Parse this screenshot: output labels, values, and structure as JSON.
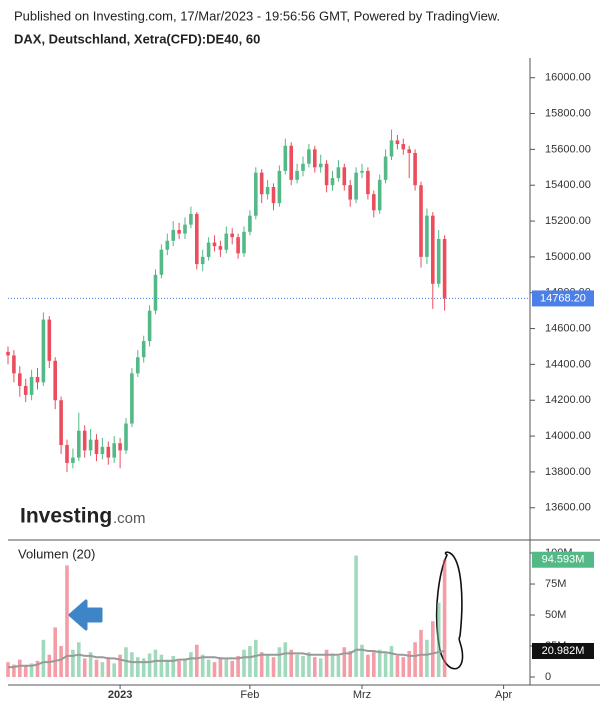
{
  "header": {
    "published": "Published on Investing.com, 17/Mar/2023 - 19:56:56 GMT, Powered by TradingView.",
    "instrument": "DAX, Deutschland, Xetra(CFD):DE40, 60"
  },
  "logo": {
    "brand": "Investing",
    "suffix": ".com"
  },
  "chart_data": {
    "type": "candlestick",
    "categories": [
      null,
      null,
      null,
      null,
      null,
      null,
      null,
      null,
      null,
      null,
      null,
      null,
      null,
      null,
      null,
      null,
      null,
      null,
      null,
      "2023",
      null,
      null,
      null,
      null,
      null,
      null,
      null,
      null,
      null,
      null,
      null,
      null,
      null,
      null,
      null,
      null,
      null,
      null,
      null,
      null,
      null,
      "Feb",
      null,
      null,
      null,
      null,
      null,
      null,
      null,
      null,
      null,
      null,
      null,
      null,
      null,
      null,
      null,
      null,
      null,
      null,
      "Mrz",
      null,
      null,
      null,
      null,
      null,
      null,
      null,
      null,
      null,
      null,
      null,
      null,
      null,
      null,
      null,
      null,
      null,
      null,
      null,
      null,
      null,
      null,
      null,
      "Apr"
    ],
    "open": [
      14470,
      14450,
      14350,
      14280,
      14230,
      14330,
      14300,
      14650,
      14420,
      14200,
      13950,
      13850,
      13880,
      14030,
      13920,
      13980,
      13900,
      13940,
      13880,
      13960,
      13920,
      14070,
      14350,
      14440,
      14530,
      14700,
      14900,
      15040,
      15090,
      15150,
      15130,
      15180,
      15240,
      14960,
      15000,
      15080,
      15060,
      15040,
      15130,
      15110,
      15020,
      15140,
      15230,
      15470,
      15350,
      15390,
      15300,
      15480,
      15620,
      15430,
      15480,
      15520,
      15600,
      15500,
      15520,
      15400,
      15440,
      15500,
      15400,
      15320,
      15470,
      15480,
      15350,
      15260,
      15430,
      15560,
      15650,
      15630,
      15600,
      15580,
      15400,
      15000,
      15230,
      14850,
      15100,
      null,
      null,
      null,
      null,
      null,
      null,
      null,
      null,
      null,
      null
    ],
    "high": [
      14500,
      14480,
      14390,
      14320,
      14370,
      14380,
      14690,
      14670,
      14440,
      14220,
      13980,
      13930,
      14130,
      14060,
      14040,
      14010,
      13990,
      13970,
      14000,
      13990,
      14100,
      14380,
      14480,
      14560,
      14730,
      14930,
      15070,
      15130,
      15200,
      15190,
      15220,
      15280,
      15250,
      15040,
      15110,
      15120,
      15090,
      15170,
      15160,
      15130,
      15170,
      15260,
      15500,
      15490,
      15430,
      15410,
      15510,
      15660,
      15640,
      15520,
      15560,
      15630,
      15620,
      15570,
      15540,
      15480,
      15540,
      15520,
      15430,
      15500,
      15520,
      15500,
      15370,
      15460,
      15600,
      15710,
      15680,
      15660,
      15620,
      15600,
      15420,
      15270,
      15250,
      15150,
      15120,
      null,
      null,
      null,
      null,
      null,
      null,
      null,
      null,
      null,
      null
    ],
    "low": [
      14400,
      14300,
      14220,
      14190,
      14200,
      14260,
      14280,
      14380,
      14150,
      13900,
      13800,
      13820,
      13860,
      13880,
      13890,
      13860,
      13870,
      13840,
      13850,
      13820,
      13900,
      14050,
      14330,
      14410,
      14500,
      14680,
      14880,
      15010,
      15060,
      15100,
      15100,
      15160,
      14930,
      14920,
      14980,
      15030,
      15000,
      15020,
      15070,
      14990,
      15000,
      15120,
      15210,
      15300,
      15320,
      15260,
      15280,
      15460,
      15400,
      15410,
      15450,
      15500,
      15470,
      15470,
      15360,
      15370,
      15420,
      15370,
      15280,
      15300,
      15440,
      15320,
      15220,
      15240,
      15410,
      15540,
      15600,
      15570,
      15440,
      15370,
      14940,
      14960,
      14710,
      14830,
      14700,
      null,
      null,
      null,
      null,
      null,
      null,
      null,
      null,
      null,
      null
    ],
    "close": [
      14450,
      14350,
      14280,
      14230,
      14330,
      14300,
      14650,
      14420,
      14200,
      13950,
      13850,
      13880,
      14030,
      13920,
      13980,
      13900,
      13940,
      13880,
      13960,
      13920,
      14070,
      14350,
      14440,
      14530,
      14700,
      14900,
      15040,
      15090,
      15150,
      15130,
      15180,
      15240,
      14960,
      15000,
      15080,
      15060,
      15040,
      15130,
      15110,
      15020,
      15140,
      15230,
      15470,
      15350,
      15390,
      15300,
      15480,
      15620,
      15430,
      15480,
      15520,
      15600,
      15500,
      15520,
      15400,
      15440,
      15500,
      15400,
      15320,
      15470,
      15480,
      15350,
      15260,
      15430,
      15560,
      15650,
      15630,
      15600,
      15580,
      15400,
      15000,
      15230,
      14850,
      15100,
      14768.2,
      null,
      null,
      null,
      null,
      null,
      null,
      null,
      null,
      null,
      null
    ],
    "up_color": "#53b987",
    "down_color": "#eb4d5c",
    "ylim": [
      13420,
      16110
    ],
    "yticks": [
      {
        "value": 13600,
        "label": "13600.00"
      },
      {
        "value": 13800,
        "label": "13800.00"
      },
      {
        "value": 14000,
        "label": "14000.00"
      },
      {
        "value": 14200,
        "label": "14200.00"
      },
      {
        "value": 14400,
        "label": "14400.00"
      },
      {
        "value": 14600,
        "label": "14600.00"
      },
      {
        "value": 14800,
        "label": "14800.00"
      },
      {
        "value": 15000,
        "label": "15000.00"
      },
      {
        "value": 15200,
        "label": "15200.00"
      },
      {
        "value": 15400,
        "label": "15400.00"
      },
      {
        "value": 15600,
        "label": "15600.00"
      },
      {
        "value": 15800,
        "label": "15800.00"
      },
      {
        "value": 16000,
        "label": "16000.00"
      }
    ],
    "last_price": {
      "value": 14768.2,
      "label": "14768.20"
    },
    "last_price_color": "#4a80e8",
    "volume_title": "Volumen (20)",
    "volume": [
      12,
      10,
      14,
      9,
      11,
      13,
      30,
      18,
      40,
      25,
      90,
      22,
      28,
      15,
      20,
      14,
      12,
      16,
      11,
      18,
      24,
      20,
      16,
      15,
      19,
      22,
      18,
      14,
      17,
      13,
      15,
      20,
      26,
      18,
      14,
      12,
      16,
      15,
      13,
      17,
      22,
      25,
      30,
      20,
      18,
      16,
      24,
      28,
      22,
      18,
      17,
      20,
      16,
      15,
      22,
      19,
      17,
      24,
      21,
      98,
      26,
      18,
      20,
      22,
      19,
      25,
      17,
      16,
      21,
      28,
      38,
      30,
      45,
      60,
      94.593,
      null,
      null,
      null,
      null,
      null,
      null,
      null,
      null,
      null,
      null
    ],
    "volume_ma": [
      8,
      8,
      9,
      9,
      9,
      10,
      12,
      12,
      13,
      14,
      17,
      17,
      18,
      17,
      17,
      16,
      16,
      15,
      15,
      14,
      13,
      12,
      12,
      12,
      12,
      13,
      13,
      13,
      13,
      14,
      14,
      15,
      15,
      16,
      16,
      16,
      15,
      15,
      15,
      15,
      16,
      16,
      17,
      18,
      18,
      18,
      18,
      19,
      19,
      19,
      19,
      18,
      18,
      18,
      18,
      18,
      18,
      19,
      19,
      22,
      22,
      21,
      21,
      20,
      20,
      19,
      18,
      18,
      17,
      17,
      18,
      18,
      19,
      20,
      20.982,
      null,
      null,
      null,
      null,
      null,
      null,
      null,
      null,
      null,
      null
    ],
    "volume_ma_color": "#999999",
    "volume_ylim": [
      0,
      106
    ],
    "volume_yticks": [
      0,
      {
        "value": 25,
        "label": "25M"
      },
      {
        "value": 50,
        "label": "50M"
      },
      {
        "value": 75,
        "label": "75M"
      },
      {
        "value": 100,
        "label": "100M"
      }
    ],
    "volume_last": {
      "value": 94.593,
      "label": "94.593M"
    },
    "volume_ma_last": {
      "value": 20.982,
      "label": "20.982M"
    }
  }
}
